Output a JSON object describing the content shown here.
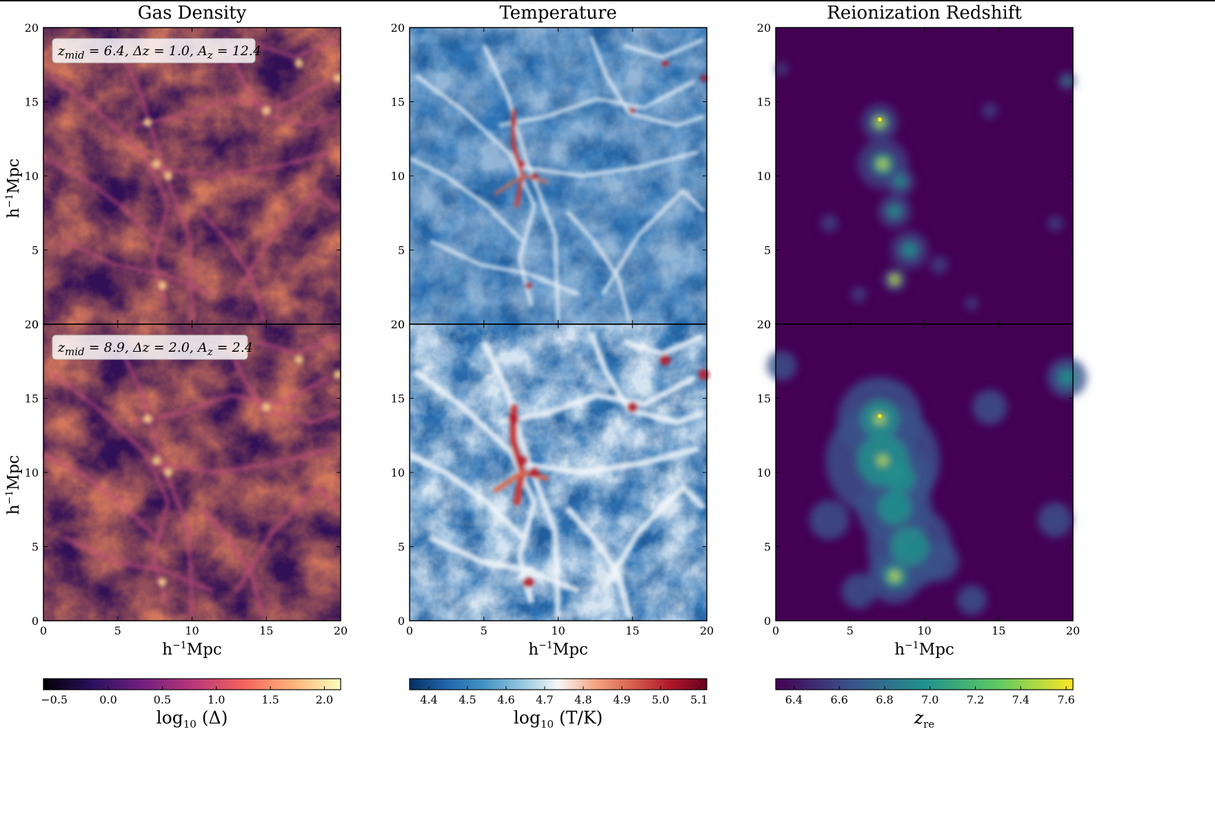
{
  "chart_data": {
    "type": "heatmap",
    "layout": {
      "rows": 2,
      "columns": 3,
      "shared_axes": true
    },
    "colors": {
      "Gas Density": [
        "#000004",
        "#2c115f",
        "#721f81",
        "#b73779",
        "#f1605d",
        "#feb078",
        "#fcfdbf"
      ],
      "Temperature": [
        "#053061",
        "#2166ac",
        "#4393c3",
        "#92c5de",
        "#f7f7f7",
        "#f4a582",
        "#d6604d",
        "#b2182b",
        "#67001f"
      ],
      "Reionization Redshift": [
        "#440154",
        "#3b528b",
        "#21918c",
        "#5ec962",
        "#fde725"
      ]
    },
    "columns": [
      {
        "title": "Gas Density",
        "colormap": "magma",
        "colorbar": {
          "ticks": [
            "−0.5",
            "0.0",
            "0.5",
            "1.0",
            "1.5",
            "2.0"
          ],
          "range": [
            -0.6,
            2.15
          ],
          "label": "log10 (Δ)"
        }
      },
      {
        "title": "Temperature",
        "colormap": "RdBu_r",
        "colorbar": {
          "ticks": [
            "4.4",
            "4.5",
            "4.6",
            "4.7",
            "4.8",
            "4.9",
            "5.0",
            "5.1"
          ],
          "range": [
            4.35,
            5.12
          ],
          "label": "log10 (T/K)"
        }
      },
      {
        "title": "Reionization Redshift",
        "colormap": "viridis",
        "colorbar": {
          "ticks": [
            "6.4",
            "6.6",
            "6.8",
            "7.0",
            "7.2",
            "7.4",
            "7.6"
          ],
          "range": [
            6.32,
            7.63
          ],
          "label": "z re"
        }
      }
    ],
    "rows": [
      {
        "annotation": {
          "z_mid": "6.4",
          "delta_z": "1.0",
          "A_z": "12.4"
        }
      },
      {
        "annotation": {
          "z_mid": "8.9",
          "delta_z": "2.0",
          "A_z": "2.4"
        }
      }
    ],
    "xlabel": "h−1Mpc",
    "ylabel": "h−1Mpc",
    "xlim": [
      0,
      20
    ],
    "ylim": [
      0,
      20
    ],
    "xticks": [
      "0",
      "5",
      "10",
      "15",
      "20"
    ],
    "yticks": [
      "0",
      "5",
      "10",
      "15",
      "20"
    ],
    "grid": false
  }
}
